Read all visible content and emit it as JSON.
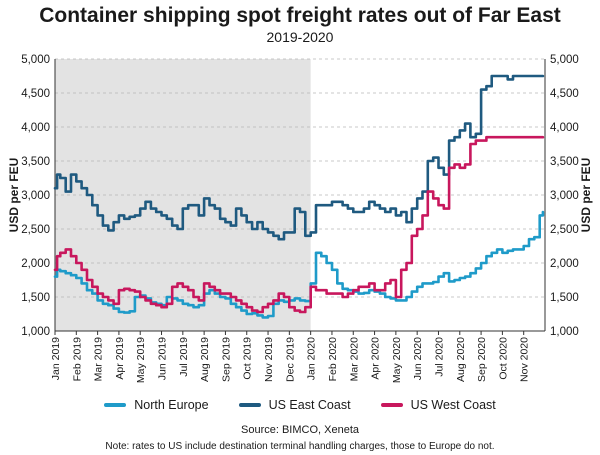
{
  "chart_data": {
    "type": "line",
    "title": "Container shipping spot freight rates out of Far East",
    "subtitle": "2019-2020",
    "ylabel": "USD per FEU",
    "ylabel_right": "USD per FEU",
    "xlabel": "",
    "ylim": [
      1000,
      5000
    ],
    "yticks": [
      1000,
      1500,
      2000,
      2500,
      3000,
      3500,
      4000,
      4500,
      5000
    ],
    "ytick_labels": [
      "1,000",
      "1,500",
      "2,000",
      "2,500",
      "3,000",
      "3,500",
      "4,000",
      "4,500",
      "5,000"
    ],
    "xticks": [
      "Jan 2019",
      "Feb 2019",
      "Mar 2019",
      "Apr 2019",
      "May 2019",
      "Jun 2019",
      "Jul 2019",
      "Aug 2019",
      "Sep 2019",
      "Oct 2019",
      "Nov 2019",
      "Dec 2019",
      "Jan 2020",
      "Feb 2020",
      "Mar 2020",
      "Apr 2020",
      "May 2020",
      "Jun 2020",
      "Jul 2020",
      "Aug 2020",
      "Sep 2020",
      "Oct 2020",
      "Nov 2020"
    ],
    "shaded_period": {
      "from": 0,
      "to": 12,
      "color": "#e3e3e3"
    },
    "grid": "horizontal dashed",
    "legend_placement": "bottom",
    "x": [
      0,
      0.1,
      0.25,
      0.5,
      0.75,
      1.0,
      1.25,
      1.5,
      1.75,
      2.0,
      2.25,
      2.5,
      2.75,
      3.0,
      3.25,
      3.5,
      3.75,
      4.0,
      4.25,
      4.5,
      4.75,
      5.0,
      5.25,
      5.5,
      5.75,
      6.0,
      6.25,
      6.5,
      6.75,
      7.0,
      7.25,
      7.5,
      7.75,
      8.0,
      8.25,
      8.5,
      8.75,
      9.0,
      9.25,
      9.5,
      9.75,
      10.0,
      10.25,
      10.5,
      10.75,
      11.0,
      11.25,
      11.5,
      11.75,
      12.0,
      12.25,
      12.5,
      12.75,
      13.0,
      13.25,
      13.5,
      13.75,
      14.0,
      14.25,
      14.5,
      14.75,
      15.0,
      15.25,
      15.5,
      15.75,
      16.0,
      16.25,
      16.5,
      16.75,
      17.0,
      17.25,
      17.5,
      17.75,
      18.0,
      18.25,
      18.5,
      18.75,
      19.0,
      19.25,
      19.5,
      19.75,
      20.0,
      20.25,
      20.5,
      20.75,
      21.0,
      21.25,
      21.5,
      21.75,
      22.0,
      22.25,
      22.5,
      22.75,
      22.9
    ],
    "series": [
      {
        "name": "North Europe",
        "color": "#1f9bc9",
        "values": [
          1800,
          1900,
          1880,
          1850,
          1820,
          1780,
          1700,
          1600,
          1550,
          1450,
          1400,
          1380,
          1330,
          1280,
          1270,
          1290,
          1500,
          1520,
          1480,
          1420,
          1400,
          1380,
          1500,
          1480,
          1450,
          1400,
          1380,
          1350,
          1380,
          1550,
          1600,
          1550,
          1500,
          1480,
          1400,
          1350,
          1300,
          1250,
          1260,
          1230,
          1200,
          1220,
          1400,
          1450,
          1430,
          1450,
          1480,
          1450,
          1440,
          1700,
          2150,
          2100,
          2000,
          1900,
          1700,
          1620,
          1600,
          1580,
          1550,
          1560,
          1600,
          1580,
          1550,
          1500,
          1480,
          1450,
          1450,
          1500,
          1580,
          1650,
          1700,
          1700,
          1720,
          1800,
          1850,
          1730,
          1750,
          1780,
          1800,
          1850,
          1920,
          2000,
          2100,
          2150,
          2200,
          2150,
          2180,
          2200,
          2200,
          2250,
          2350,
          2380,
          2700,
          2750
        ]
      },
      {
        "name": "US East Coast",
        "color": "#1f5a80",
        "values": [
          3100,
          3300,
          3250,
          3050,
          3300,
          3200,
          3100,
          3000,
          2850,
          2700,
          2550,
          2480,
          2600,
          2700,
          2650,
          2680,
          2700,
          2800,
          2900,
          2800,
          2750,
          2700,
          2650,
          2550,
          2500,
          2800,
          2850,
          2850,
          2700,
          2950,
          2850,
          2800,
          2650,
          2600,
          2550,
          2800,
          2700,
          2600,
          2500,
          2600,
          2500,
          2450,
          2400,
          2350,
          2450,
          2450,
          2800,
          2750,
          2400,
          2450,
          2850,
          2850,
          2850,
          2900,
          2900,
          2850,
          2800,
          2750,
          2750,
          2800,
          2900,
          2850,
          2800,
          2750,
          2800,
          2700,
          2750,
          2600,
          2800,
          2950,
          3050,
          3500,
          3550,
          3400,
          3300,
          3800,
          3850,
          3950,
          4050,
          3850,
          3900,
          4550,
          4600,
          4750,
          4750,
          4750,
          4700,
          4750,
          4750,
          4750,
          4750,
          4750,
          4750,
          4750
        ]
      },
      {
        "name": "US West Coast",
        "color": "#c8175d",
        "values": [
          1900,
          2100,
          2150,
          2200,
          2100,
          2000,
          1900,
          1750,
          1650,
          1550,
          1500,
          1450,
          1400,
          1600,
          1620,
          1600,
          1580,
          1500,
          1450,
          1400,
          1380,
          1350,
          1400,
          1650,
          1700,
          1650,
          1600,
          1500,
          1450,
          1700,
          1650,
          1600,
          1550,
          1550,
          1500,
          1450,
          1400,
          1350,
          1300,
          1280,
          1350,
          1400,
          1450,
          1550,
          1500,
          1350,
          1300,
          1280,
          1350,
          1650,
          1600,
          1600,
          1550,
          1550,
          1550,
          1500,
          1550,
          1600,
          1650,
          1650,
          1700,
          1600,
          1600,
          1700,
          1750,
          1500,
          1900,
          2000,
          2400,
          2500,
          2700,
          3050,
          2950,
          2850,
          2800,
          3400,
          3450,
          3400,
          3450,
          3750,
          3800,
          3800,
          3850,
          3850,
          3850,
          3850,
          3850,
          3850,
          3850,
          3850,
          3850,
          3850,
          3850,
          3850
        ]
      }
    ],
    "source": "Source: BIMCO, Xeneta",
    "note": "Note: rates to US include destination terminal handling charges, those to Europe do not."
  }
}
